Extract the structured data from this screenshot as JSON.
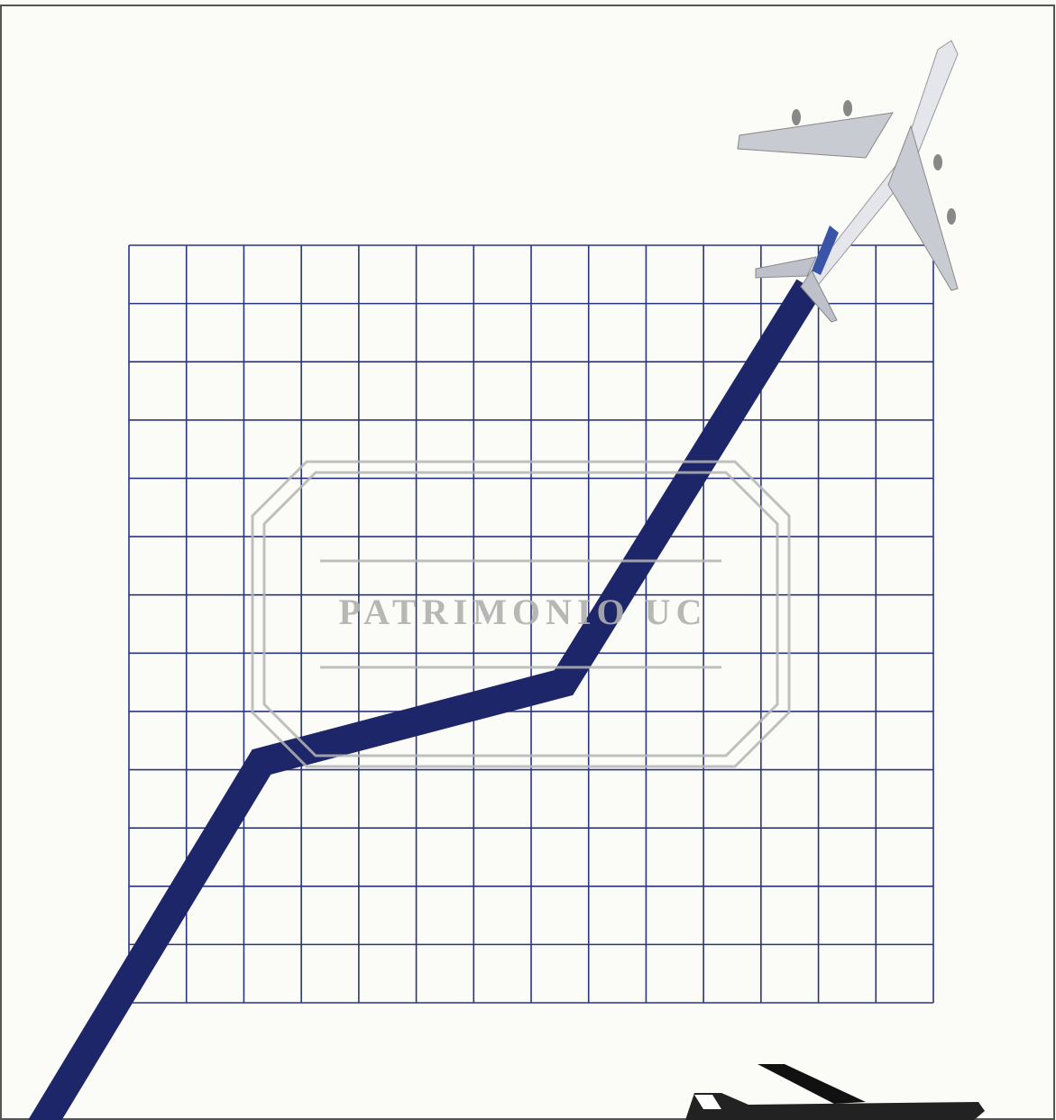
{
  "watermark": "PATRIMONIO UC"
}
